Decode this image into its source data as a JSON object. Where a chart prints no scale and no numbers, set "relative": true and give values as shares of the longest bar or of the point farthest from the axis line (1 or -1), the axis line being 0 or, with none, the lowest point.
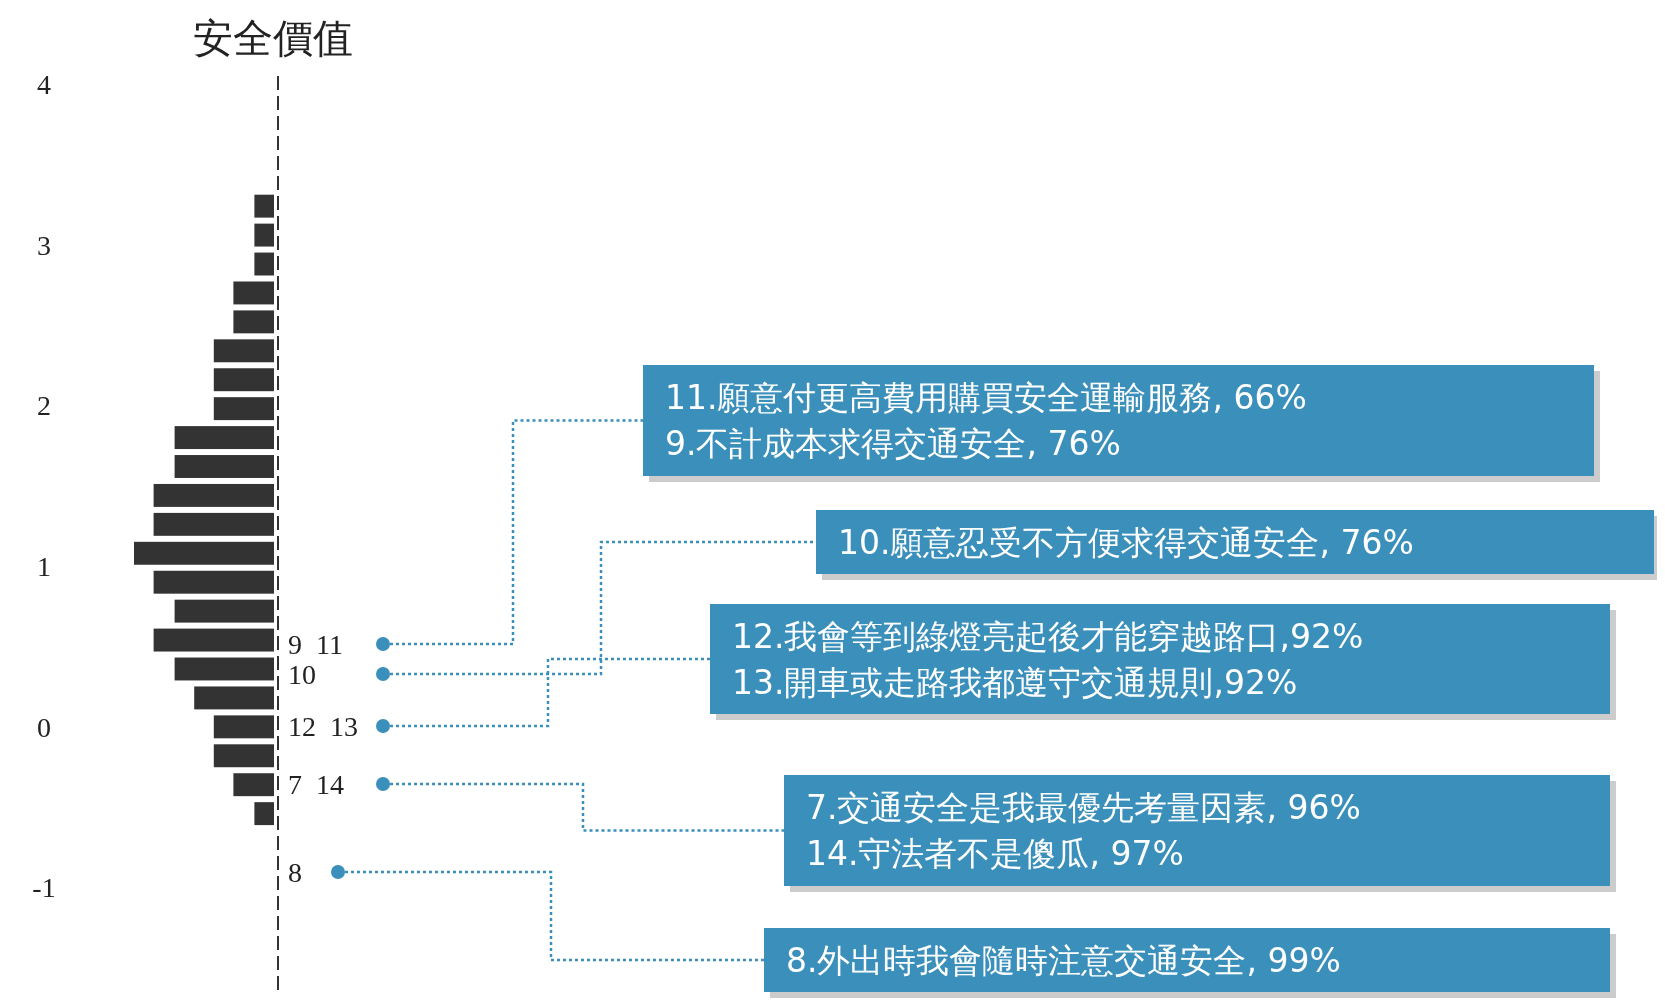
{
  "chart_data": {
    "type": "bar",
    "orientation": "horizontal",
    "relative": true,
    "title": "安全價值",
    "x": [
      -0.54,
      -0.36,
      -0.18,
      0,
      0.18,
      0.36,
      0.54,
      0.72,
      0.9,
      1.08,
      1.26,
      1.44,
      1.62,
      1.8,
      1.98,
      2.16,
      2.34,
      2.52,
      2.7,
      2.88,
      3.06,
      3.24
    ],
    "values": [
      0.14,
      0.29,
      0.43,
      0.43,
      0.57,
      0.71,
      0.86,
      0.71,
      0.86,
      1,
      0.86,
      0.86,
      0.71,
      0.71,
      0.43,
      0.43,
      0.43,
      0.29,
      0.29,
      0.14,
      0.14,
      0.14
    ],
    "color": "#333333",
    "ylim": [
      -1.65,
      4.05
    ],
    "yticks": [
      -1,
      0,
      1,
      2,
      3,
      4
    ],
    "grid": false,
    "annotations": [
      "9  11",
      "10",
      "12  13",
      "7  14",
      "8",
      "11.願意付更高費用購買安全運輸服務, 66%\n9.不計成本求得交通安全, 76%",
      "10.願意忍受不方便求得交通安全, 76%",
      "12.我會等到綠燈亮起後才能穿越路口,92%\n13.開車或走路我都遵守交通規則,92%",
      "7.交通安全是我最優先考量因素, 96%\n14.守法者不是傻瓜, 97%",
      "8.外出時我會隨時注意交通安全, 99%"
    ]
  }
}
